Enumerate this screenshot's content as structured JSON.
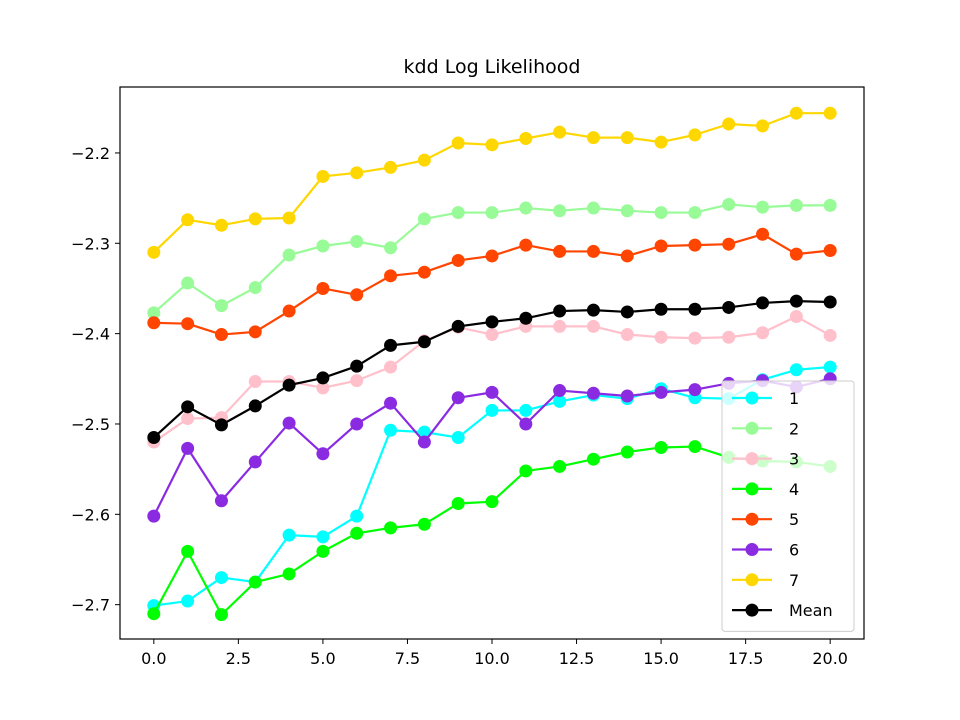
{
  "chart_data": {
    "type": "line",
    "title": "kdd Log Likelihood",
    "xlabel": "",
    "ylabel": "",
    "xlim": [
      -1,
      21
    ],
    "ylim": [
      -2.738,
      -2.127
    ],
    "x_ticks": [
      "0.0",
      "2.5",
      "5.0",
      "7.5",
      "10.0",
      "12.5",
      "15.0",
      "17.5",
      "20.0"
    ],
    "x_tick_values": [
      0,
      2.5,
      5,
      7.5,
      10,
      12.5,
      15,
      17.5,
      20
    ],
    "y_ticks": [
      "−2.7",
      "−2.6",
      "−2.5",
      "−2.4",
      "−2.3",
      "−2.2"
    ],
    "y_tick_values": [
      -2.7,
      -2.6,
      -2.5,
      -2.4,
      -2.3,
      -2.2
    ],
    "x": [
      0,
      1,
      2,
      3,
      4,
      5,
      6,
      7,
      8,
      9,
      10,
      11,
      12,
      13,
      14,
      15,
      16,
      17,
      18,
      19,
      20
    ],
    "legend_position": "lower-right",
    "grid": false,
    "series": [
      {
        "name": "1",
        "color": "#00ffff",
        "values": [
          -2.701,
          -2.696,
          -2.67,
          -2.675,
          -2.623,
          -2.625,
          -2.602,
          -2.507,
          -2.509,
          -2.515,
          -2.485,
          -2.485,
          -2.475,
          -2.468,
          -2.472,
          -2.461,
          -2.471,
          -2.472,
          -2.451,
          -2.44,
          -2.437
        ]
      },
      {
        "name": "2",
        "color": "#98fb98",
        "values": [
          -2.377,
          -2.344,
          -2.369,
          -2.349,
          -2.313,
          -2.303,
          -2.298,
          -2.305,
          -2.273,
          -2.266,
          -2.266,
          -2.261,
          -2.264,
          -2.261,
          -2.264,
          -2.266,
          -2.266,
          -2.257,
          -2.26,
          -2.258,
          -2.258
        ]
      },
      {
        "name": "3",
        "color": "#ffc0cb",
        "values": [
          -2.52,
          -2.494,
          -2.493,
          -2.453,
          -2.453,
          -2.46,
          -2.452,
          -2.437,
          -2.408,
          -2.393,
          -2.401,
          -2.392,
          -2.392,
          -2.392,
          -2.401,
          -2.404,
          -2.405,
          -2.404,
          -2.399,
          -2.381,
          -2.402
        ]
      },
      {
        "name": "4",
        "color": "#00ff00",
        "values": [
          -2.71,
          -2.641,
          -2.711,
          -2.675,
          -2.666,
          -2.641,
          -2.621,
          -2.615,
          -2.611,
          -2.588,
          -2.586,
          -2.552,
          -2.547,
          -2.539,
          -2.531,
          -2.526,
          -2.525,
          -2.537,
          -2.541,
          -2.542,
          -2.547
        ]
      },
      {
        "name": "5",
        "color": "#ff4500",
        "values": [
          -2.388,
          -2.389,
          -2.401,
          -2.398,
          -2.375,
          -2.35,
          -2.357,
          -2.336,
          -2.332,
          -2.319,
          -2.314,
          -2.302,
          -2.309,
          -2.309,
          -2.314,
          -2.303,
          -2.302,
          -2.301,
          -2.29,
          -2.312,
          -2.308
        ]
      },
      {
        "name": "6",
        "color": "#8a2be2",
        "values": [
          -2.602,
          -2.527,
          -2.585,
          -2.542,
          -2.499,
          -2.533,
          -2.5,
          -2.477,
          -2.52,
          -2.471,
          -2.465,
          -2.5,
          -2.463,
          -2.466,
          -2.469,
          -2.465,
          -2.462,
          -2.455,
          -2.452,
          -2.459,
          -2.45
        ]
      },
      {
        "name": "7",
        "color": "#ffd700",
        "values": [
          -2.31,
          -2.274,
          -2.28,
          -2.273,
          -2.272,
          -2.226,
          -2.222,
          -2.216,
          -2.208,
          -2.189,
          -2.191,
          -2.184,
          -2.177,
          -2.183,
          -2.183,
          -2.188,
          -2.18,
          -2.168,
          -2.17,
          -2.156,
          -2.156
        ]
      },
      {
        "name": "Mean",
        "color": "#000000",
        "values": [
          -2.515,
          -2.481,
          -2.501,
          -2.48,
          -2.457,
          -2.449,
          -2.436,
          -2.413,
          -2.409,
          -2.392,
          -2.387,
          -2.383,
          -2.375,
          -2.374,
          -2.376,
          -2.373,
          -2.373,
          -2.371,
          -2.366,
          -2.364,
          -2.365
        ]
      }
    ]
  }
}
